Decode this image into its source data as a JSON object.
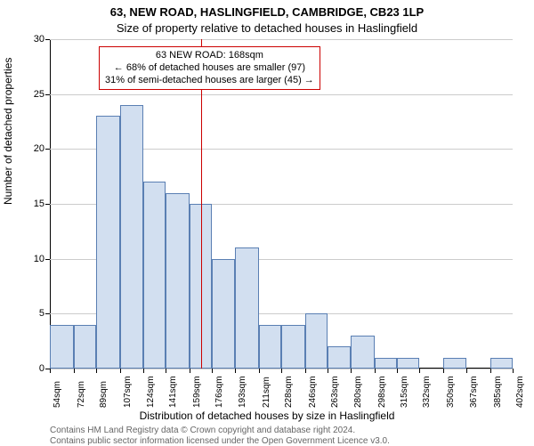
{
  "titles": {
    "line1": "63, NEW ROAD, HASLINGFIELD, CAMBRIDGE, CB23 1LP",
    "line2": "Size of property relative to detached houses in Haslingfield"
  },
  "chart": {
    "type": "histogram",
    "ylabel": "Number of detached properties",
    "xlabel": "Distribution of detached houses by size in Haslingfield",
    "ylim": [
      0,
      30
    ],
    "ytick_step": 5,
    "yticks": [
      0,
      5,
      10,
      15,
      20,
      25,
      30
    ],
    "bar_fill": "#d2dff0",
    "bar_border": "#5a7fb3",
    "grid_color": "#cccccc",
    "background_color": "#ffffff",
    "reference_line_value": 168,
    "reference_line_color": "#cc0000",
    "x_tick_labels": [
      "54sqm",
      "72sqm",
      "89sqm",
      "107sqm",
      "124sqm",
      "141sqm",
      "159sqm",
      "176sqm",
      "193sqm",
      "211sqm",
      "228sqm",
      "246sqm",
      "263sqm",
      "280sqm",
      "298sqm",
      "315sqm",
      "332sqm",
      "350sqm",
      "367sqm",
      "385sqm",
      "402sqm"
    ],
    "x_tick_values": [
      54,
      72,
      89,
      107,
      124,
      141,
      159,
      176,
      193,
      211,
      228,
      246,
      263,
      280,
      298,
      315,
      332,
      350,
      367,
      385,
      402
    ],
    "x_range": [
      54,
      402
    ],
    "bin_edges": [
      54,
      72,
      89,
      107,
      124,
      141,
      159,
      176,
      193,
      211,
      228,
      246,
      263,
      280,
      298,
      315,
      332,
      350,
      367,
      385,
      402
    ],
    "counts": [
      4,
      4,
      23,
      24,
      17,
      16,
      15,
      10,
      11,
      4,
      4,
      5,
      2,
      3,
      1,
      1,
      0,
      1,
      0,
      1
    ],
    "callout": {
      "line1": "63 NEW ROAD: 168sqm",
      "line2": "← 68% of detached houses are smaller (97)",
      "line3": "31% of semi-detached houses are larger (45) →",
      "border_color": "#cc0000"
    }
  },
  "footer": {
    "line1": "Contains HM Land Registry data © Crown copyright and database right 2024.",
    "line2": "Contains public sector information licensed under the Open Government Licence v3.0."
  },
  "text_color": "#000000",
  "footer_color": "#666666"
}
